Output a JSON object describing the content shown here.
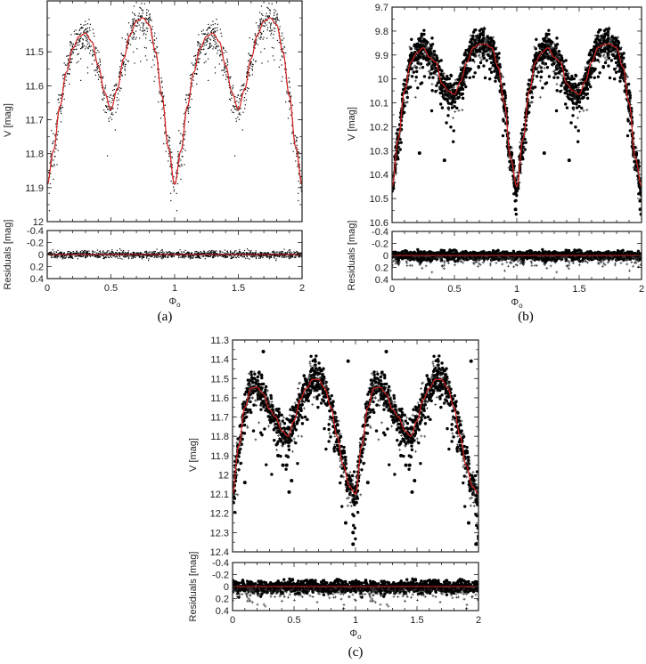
{
  "figure": {
    "panels": [
      {
        "id": "a",
        "caption": "(a)"
      },
      {
        "id": "b",
        "caption": "(b)"
      },
      {
        "id": "c",
        "caption": "(c)"
      }
    ]
  },
  "colors": {
    "model_curve": "#d42020",
    "points": "#000000",
    "frame": "#222222",
    "residual_zero_line": "#8b1a1a"
  },
  "chart_data": [
    {
      "panel": "(a)",
      "type": "scatter",
      "title": "",
      "xlabel": "Φo",
      "ylabel": "V [mag]",
      "residual_ylabel": "Residuals [mag]",
      "xlim": [
        0,
        2
      ],
      "ylim": [
        12.0,
        11.35
      ],
      "y_inverted": true,
      "x_ticks": [
        0,
        0.5,
        1,
        1.5,
        2
      ],
      "y_ticks": [
        11.5,
        11.6,
        11.7,
        11.8,
        11.9,
        12
      ],
      "residual_ylim": [
        0.4,
        -0.4
      ],
      "residual_ticks": [
        -0.4,
        -0.2,
        0,
        0.2,
        0.4
      ],
      "marker": "dot",
      "model_curve": {
        "phase": [
          0.0,
          0.05,
          0.1,
          0.15,
          0.2,
          0.25,
          0.3,
          0.35,
          0.4,
          0.45,
          0.5,
          0.55,
          0.6,
          0.65,
          0.7,
          0.75,
          0.8,
          0.85,
          0.9,
          0.95,
          1.0
        ],
        "V": [
          11.89,
          11.79,
          11.66,
          11.56,
          11.49,
          11.455,
          11.445,
          11.47,
          11.54,
          11.62,
          11.67,
          11.61,
          11.52,
          11.45,
          11.41,
          11.4,
          11.42,
          11.5,
          11.63,
          11.78,
          11.89
        ]
      },
      "points_scatter_mag": 0.025,
      "residual_scatter_mag": 0.03,
      "n_points_per_cycle": 700
    },
    {
      "panel": "(b)",
      "type": "scatter",
      "title": "",
      "xlabel": "Φo",
      "ylabel": "V [mag]",
      "residual_ylabel": "Residuals [mag]",
      "xlim": [
        0,
        2
      ],
      "ylim": [
        10.6,
        9.7
      ],
      "y_inverted": true,
      "x_ticks": [
        0,
        0.5,
        1,
        1.5,
        2
      ],
      "y_ticks": [
        9.7,
        9.8,
        9.9,
        10,
        10.1,
        10.2,
        10.3,
        10.4,
        10.5,
        10.6
      ],
      "residual_ylim": [
        0.4,
        -0.4
      ],
      "residual_ticks": [
        -0.4,
        -0.2,
        0,
        0.2,
        0.4
      ],
      "marker": "filled-circle and plus",
      "model_curve": {
        "phase": [
          0.0,
          0.05,
          0.1,
          0.15,
          0.2,
          0.25,
          0.3,
          0.35,
          0.4,
          0.45,
          0.5,
          0.55,
          0.6,
          0.65,
          0.7,
          0.75,
          0.8,
          0.85,
          0.9,
          0.95,
          1.0
        ],
        "V": [
          10.45,
          10.25,
          10.05,
          9.93,
          9.89,
          9.87,
          9.91,
          9.93,
          10.02,
          10.05,
          10.065,
          10.01,
          9.93,
          9.87,
          9.855,
          9.855,
          9.87,
          9.95,
          10.1,
          10.33,
          10.45
        ]
      },
      "outliers": [
        {
          "phase": 0.22,
          "V": 10.31
        },
        {
          "phase": 0.42,
          "V": 10.34
        },
        {
          "phase": 0.99,
          "V": 10.545
        },
        {
          "phase": 1.22,
          "V": 10.31
        },
        {
          "phase": 1.42,
          "V": 10.34
        },
        {
          "phase": 1.99,
          "V": 10.545
        }
      ],
      "points_scatter_mag": 0.03,
      "residual_scatter_mag": 0.035,
      "n_points_per_cycle": 1200
    },
    {
      "panel": "(c)",
      "type": "scatter",
      "title": "",
      "xlabel": "Φo",
      "ylabel": "V [mag]",
      "residual_ylabel": "Residuals [mag]",
      "xlim": [
        0,
        2
      ],
      "ylim": [
        12.4,
        11.3
      ],
      "y_inverted": true,
      "x_ticks": [
        0,
        0.5,
        1,
        1.5,
        2
      ],
      "y_ticks": [
        11.3,
        11.4,
        11.5,
        11.6,
        11.7,
        11.8,
        11.9,
        12,
        12.1,
        12.2,
        12.3,
        12.4
      ],
      "residual_ylim": [
        0.4,
        -0.4
      ],
      "residual_ticks": [
        -0.4,
        -0.2,
        0,
        0.2,
        0.4
      ],
      "marker": "filled-circle and plus",
      "model_curve": {
        "phase": [
          0.0,
          0.05,
          0.1,
          0.15,
          0.2,
          0.25,
          0.3,
          0.35,
          0.4,
          0.45,
          0.5,
          0.55,
          0.6,
          0.65,
          0.7,
          0.75,
          0.8,
          0.85,
          0.9,
          0.95,
          1.0
        ],
        "V": [
          12.1,
          11.85,
          11.65,
          11.55,
          11.545,
          11.58,
          11.66,
          11.7,
          11.77,
          11.8,
          11.72,
          11.61,
          11.55,
          11.505,
          11.505,
          11.55,
          11.65,
          11.8,
          11.95,
          12.06,
          12.1
        ]
      },
      "outliers": [
        {
          "phase": 0.25,
          "V": 11.36
        },
        {
          "phase": 0.94,
          "V": 11.41
        },
        {
          "phase": 0.98,
          "V": 12.36
        },
        {
          "phase": 0.46,
          "V": 12.09
        },
        {
          "phase": 0.48,
          "V": 12.03
        },
        {
          "phase": 0.37,
          "V": 11.9
        },
        {
          "phase": 0.41,
          "V": 11.95
        },
        {
          "phase": 0.44,
          "V": 11.95
        },
        {
          "phase": 0.1,
          "V": 12.04
        },
        {
          "phase": 0.92,
          "V": 12.25
        },
        {
          "phase": 0.98,
          "V": 12.3
        },
        {
          "phase": 1.25,
          "V": 11.36
        },
        {
          "phase": 1.94,
          "V": 11.41
        },
        {
          "phase": 1.98,
          "V": 12.36
        },
        {
          "phase": 1.46,
          "V": 12.09
        },
        {
          "phase": 1.48,
          "V": 12.03
        },
        {
          "phase": 1.37,
          "V": 11.9
        },
        {
          "phase": 1.41,
          "V": 11.95
        },
        {
          "phase": 1.44,
          "V": 11.95
        },
        {
          "phase": 1.1,
          "V": 12.04
        },
        {
          "phase": 1.92,
          "V": 12.25
        },
        {
          "phase": 2.0,
          "V": 12.32
        }
      ],
      "points_scatter_mag": 0.045,
      "residual_scatter_mag": 0.05,
      "n_points_per_cycle": 1000
    }
  ]
}
